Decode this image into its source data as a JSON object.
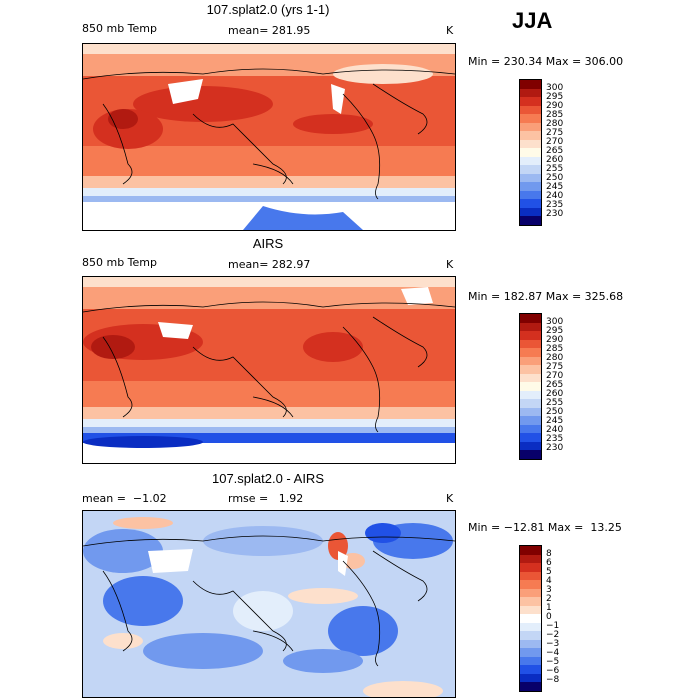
{
  "header": {
    "season": "JJA"
  },
  "palettes": {
    "temp": [
      "#08006a",
      "#0a2dc2",
      "#2151e6",
      "#4878ec",
      "#7199ee",
      "#9cb9f1",
      "#c3d6f5",
      "#e3eefb",
      "#fffbe8",
      "#fde0cc",
      "#fcc2a3",
      "#fa9f79",
      "#f67b52",
      "#ea5636",
      "#d4301f",
      "#b11a11",
      "#800000"
    ],
    "diff": [
      "#08006a",
      "#0a2dc2",
      "#2151e6",
      "#4878ec",
      "#7199ee",
      "#9cb9f1",
      "#c3d6f5",
      "#e3eefb",
      "#ffffff",
      "#fde0cc",
      "#fcc2a3",
      "#fa9f79",
      "#f67b52",
      "#ea5636",
      "#d4301f",
      "#b11a11",
      "#800000"
    ]
  },
  "panels": [
    {
      "title": "107.splat2.0 (yrs 1-1)",
      "left_label": "850 mb Temp",
      "mean_label": "mean= 281.95",
      "units": "K",
      "minmax": "Min = 230.34 Max = 306.00",
      "palette": "temp",
      "cbar_labels": [
        "300",
        "295",
        "290",
        "285",
        "280",
        "275",
        "270",
        "265",
        "260",
        "255",
        "250",
        "245",
        "240",
        "235",
        "230"
      ]
    },
    {
      "title": "AIRS",
      "left_label": "850 mb Temp",
      "mean_label": "mean= 282.97",
      "units": "K",
      "minmax": "Min = 182.87 Max = 325.68",
      "palette": "temp",
      "cbar_labels": [
        "300",
        "295",
        "290",
        "285",
        "280",
        "275",
        "270",
        "265",
        "260",
        "255",
        "250",
        "245",
        "240",
        "235",
        "230"
      ]
    },
    {
      "title": "107.splat2.0 - AIRS",
      "left_label": "mean =  −1.02",
      "mean_label": "rmse =   1.92",
      "units": "K",
      "minmax": "Min = −12.81 Max =  13.25",
      "palette": "diff",
      "cbar_labels": [
        "8",
        "6",
        "5",
        "4",
        "3",
        "2",
        "1",
        "0",
        "−1",
        "−2",
        "−3",
        "−4",
        "−5",
        "−6",
        "−8"
      ]
    }
  ]
}
